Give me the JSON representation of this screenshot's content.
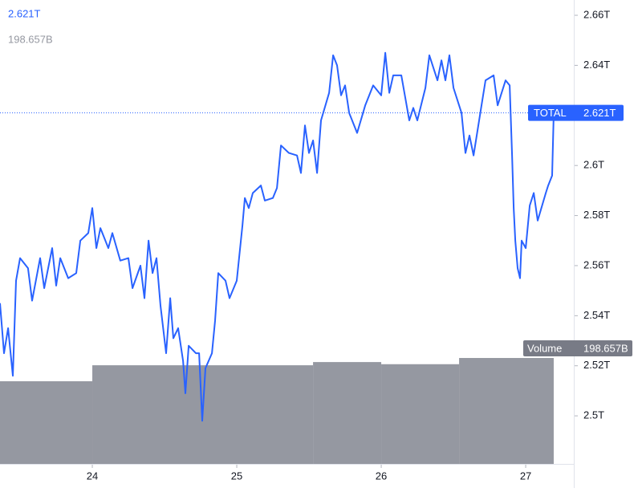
{
  "chart_data": {
    "type": "line",
    "xlim": [
      23.361,
      27.333
    ],
    "xticks": [
      24,
      25,
      26,
      27
    ],
    "ylim": [
      2.4808,
      2.6661
    ],
    "yticks": [
      {
        "value": 2.5,
        "label": "2.5T"
      },
      {
        "value": 2.52,
        "label": "2.52T"
      },
      {
        "value": 2.54,
        "label": "2.54T"
      },
      {
        "value": 2.56,
        "label": "2.56T"
      },
      {
        "value": 2.58,
        "label": "2.58T"
      },
      {
        "value": 2.6,
        "label": "2.6T"
      },
      {
        "value": 2.64,
        "label": "2.64T"
      },
      {
        "value": 2.66,
        "label": "2.66T"
      }
    ],
    "y2lim": [
      0,
      870
    ],
    "series": [
      {
        "name": "TOTAL",
        "color": "#2962ff",
        "last_value": {
          "value": 2.621,
          "label": "2.621T"
        },
        "x": [
          23.361,
          23.389,
          23.417,
          23.45,
          23.472,
          23.5,
          23.555,
          23.583,
          23.639,
          23.667,
          23.722,
          23.75,
          23.778,
          23.833,
          23.889,
          23.917,
          23.972,
          24.0,
          24.028,
          24.056,
          24.111,
          24.139,
          24.194,
          24.25,
          24.278,
          24.333,
          24.361,
          24.389,
          24.417,
          24.444,
          24.472,
          24.511,
          24.539,
          24.561,
          24.594,
          24.628,
          24.644,
          24.667,
          24.717,
          24.739,
          24.761,
          24.783,
          24.828,
          24.85,
          24.872,
          24.922,
          24.95,
          25.0,
          25.039,
          25.056,
          25.083,
          25.111,
          25.167,
          25.194,
          25.25,
          25.278,
          25.306,
          25.361,
          25.417,
          25.444,
          25.472,
          25.5,
          25.528,
          25.556,
          25.583,
          25.639,
          25.667,
          25.694,
          25.722,
          25.75,
          25.778,
          25.833,
          25.889,
          25.944,
          26.0,
          26.028,
          26.056,
          26.083,
          26.139,
          26.194,
          26.222,
          26.25,
          26.306,
          26.333,
          26.389,
          26.417,
          26.444,
          26.472,
          26.5,
          26.556,
          26.583,
          26.611,
          26.639,
          26.694,
          26.722,
          26.778,
          26.806,
          26.861,
          26.889,
          26.906,
          26.917,
          26.928,
          26.944,
          26.961,
          26.972,
          27.0,
          27.028,
          27.056,
          27.083,
          27.139,
          27.156,
          27.183,
          27.194
        ],
        "values": [
          2.545,
          2.525,
          2.535,
          2.516,
          2.554,
          2.563,
          2.559,
          2.546,
          2.563,
          2.551,
          2.567,
          2.552,
          2.563,
          2.555,
          2.557,
          2.57,
          2.573,
          2.583,
          2.567,
          2.575,
          2.567,
          2.573,
          2.562,
          2.563,
          2.551,
          2.56,
          2.547,
          2.57,
          2.557,
          2.563,
          2.544,
          2.525,
          2.547,
          2.531,
          2.535,
          2.522,
          2.509,
          2.528,
          2.525,
          2.525,
          2.498,
          2.519,
          2.525,
          2.538,
          2.557,
          2.554,
          2.547,
          2.554,
          2.576,
          2.587,
          2.583,
          2.589,
          2.592,
          2.586,
          2.587,
          2.591,
          2.608,
          2.605,
          2.604,
          2.597,
          2.616,
          2.605,
          2.61,
          2.597,
          2.618,
          2.629,
          2.644,
          2.64,
          2.628,
          2.632,
          2.621,
          2.613,
          2.624,
          2.632,
          2.628,
          2.645,
          2.629,
          2.636,
          2.636,
          2.618,
          2.623,
          2.618,
          2.631,
          2.644,
          2.634,
          2.642,
          2.634,
          2.644,
          2.631,
          2.621,
          2.605,
          2.612,
          2.604,
          2.624,
          2.634,
          2.636,
          2.624,
          2.634,
          2.632,
          2.604,
          2.583,
          2.57,
          2.559,
          2.555,
          2.57,
          2.567,
          2.584,
          2.589,
          2.578,
          2.589,
          2.592,
          2.596,
          2.621
        ]
      },
      {
        "name": "Volume",
        "color": "#9598a1",
        "axis": "y2",
        "last_value": {
          "value": 198.657,
          "label": "198.657B"
        },
        "bins": [
          23.361,
          24.0,
          25.528,
          26.0,
          26.539,
          27.194
        ],
        "values": [
          155,
          185,
          191,
          187,
          198.657
        ]
      }
    ]
  }
}
